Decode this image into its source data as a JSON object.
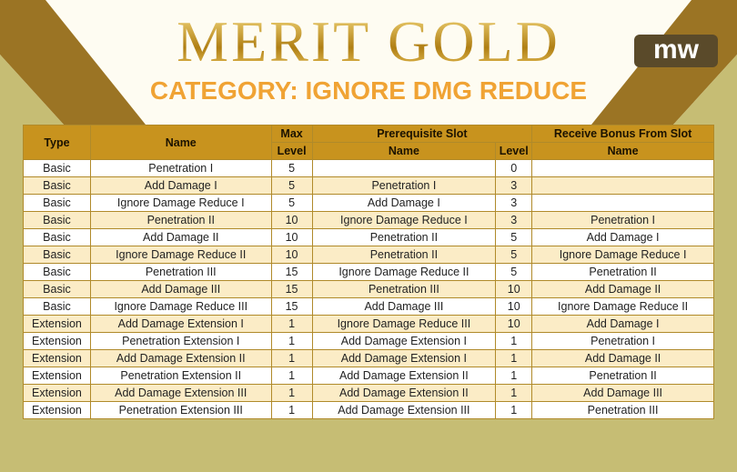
{
  "header": {
    "title": "MERIT GOLD",
    "subtitle": "CATEGORY: IGNORE DMG REDUCE",
    "logo": "mw"
  },
  "table": {
    "group_headers": [
      "Type",
      "Name",
      "Max",
      "Prerequisite Slot",
      "Receive Bonus From Slot"
    ],
    "sub_headers": [
      "Level",
      "Name",
      "Level",
      "Name"
    ],
    "rows": [
      [
        "Basic",
        "Penetration I",
        "5",
        null,
        "0",
        null
      ],
      [
        "Basic",
        "Add Damage I",
        "5",
        "Penetration I",
        "3",
        null
      ],
      [
        "Basic",
        "Ignore Damage Reduce I",
        "5",
        "Add Damage I",
        "3",
        null
      ],
      [
        "Basic",
        "Penetration II",
        "10",
        "Ignore Damage Reduce I",
        "3",
        "Penetration I"
      ],
      [
        "Basic",
        "Add Damage II",
        "10",
        "Penetration II",
        "5",
        "Add Damage I"
      ],
      [
        "Basic",
        "Ignore Damage Reduce II",
        "10",
        "Penetration II",
        "5",
        "Ignore Damage Reduce I"
      ],
      [
        "Basic",
        "Penetration III",
        "15",
        "Ignore Damage Reduce II",
        "5",
        "Penetration II"
      ],
      [
        "Basic",
        "Add Damage III",
        "15",
        "Penetration III",
        "10",
        "Add Damage II"
      ],
      [
        "Basic",
        "Ignore Damage Reduce III",
        "15",
        "Add Damage III",
        "10",
        "Ignore Damage Reduce II"
      ],
      [
        "Extension",
        "Add Damage Extension I",
        "1",
        "Ignore Damage Reduce III",
        "10",
        "Add Damage I"
      ],
      [
        "Extension",
        "Penetration Extension I",
        "1",
        "Add Damage Extension I",
        "1",
        "Penetration I"
      ],
      [
        "Extension",
        "Add Damage Extension II",
        "1",
        "Add Damage Extension I",
        "1",
        "Add Damage II"
      ],
      [
        "Extension",
        "Penetration Extension II",
        "1",
        "Add Damage Extension II",
        "1",
        "Penetration II"
      ],
      [
        "Extension",
        "Add Damage Extension III",
        "1",
        "Add Damage Extension II",
        "1",
        "Add Damage III"
      ],
      [
        "Extension",
        "Penetration Extension III",
        "1",
        "Add Damage Extension III",
        "1",
        "Penetration III"
      ]
    ]
  }
}
